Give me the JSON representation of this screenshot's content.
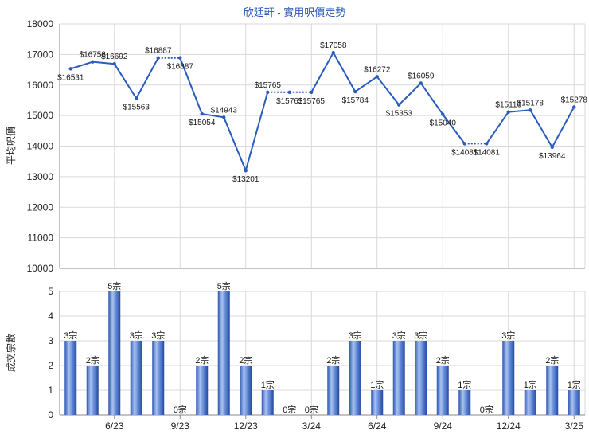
{
  "chart_data": [
    {
      "type": "line",
      "title": "欣廷軒 - 實用呎價走勢",
      "ylabel": "平均呎價",
      "ylim": [
        10000,
        18000
      ],
      "yticks": [
        10000,
        11000,
        12000,
        13000,
        14000,
        15000,
        16000,
        17000,
        18000
      ],
      "color": "#2a5cc0",
      "series": [
        {
          "values": [
            16531,
            16758,
            16692,
            15563,
            16887,
            16887,
            15054,
            14943,
            13201,
            15765,
            15765,
            15765,
            17058,
            15784,
            16272,
            15353,
            16059,
            15040,
            14081,
            14081,
            15116,
            15178,
            13964,
            15278
          ],
          "labels": [
            "$16531",
            "$16758",
            "$16692",
            "$15563",
            "$16887",
            "$16887",
            "$15054",
            "$14943",
            "$13201",
            "$15765",
            "$15765",
            "$15765",
            "$17058",
            "$15784",
            "$16272",
            "$15353",
            "$16059",
            "$15040",
            "$14081",
            "$14081",
            "$15116",
            "$15178",
            "$13964",
            "$15278"
          ],
          "interpolated": [
            false,
            false,
            false,
            false,
            false,
            true,
            false,
            false,
            false,
            false,
            true,
            true,
            false,
            false,
            false,
            false,
            false,
            false,
            false,
            true,
            false,
            false,
            false,
            false
          ]
        }
      ]
    },
    {
      "type": "bar",
      "ylabel": "成交宗數",
      "ylim": [
        0,
        5
      ],
      "yticks": [
        0,
        1,
        2,
        3,
        4,
        5
      ],
      "values": [
        3,
        2,
        5,
        3,
        3,
        0,
        2,
        5,
        2,
        1,
        0,
        0,
        2,
        3,
        1,
        3,
        3,
        2,
        1,
        0,
        3,
        1,
        2,
        1
      ],
      "labels": [
        "3宗",
        "2宗",
        "5宗",
        "3宗",
        "3宗",
        "0宗",
        "2宗",
        "5宗",
        "2宗",
        "1宗",
        "0宗",
        "0宗",
        "2宗",
        "3宗",
        "1宗",
        "3宗",
        "3宗",
        "2宗",
        "1宗",
        "0宗",
        "3宗",
        "1宗",
        "2宗",
        "1宗"
      ],
      "x_tick_labels": [
        {
          "index": 2,
          "label": "6/23"
        },
        {
          "index": 5,
          "label": "9/23"
        },
        {
          "index": 8,
          "label": "12/23"
        },
        {
          "index": 11,
          "label": "3/24"
        },
        {
          "index": 14,
          "label": "6/24"
        },
        {
          "index": 17,
          "label": "9/24"
        },
        {
          "index": 20,
          "label": "12/24"
        },
        {
          "index": 23,
          "label": "3/25"
        }
      ]
    }
  ]
}
